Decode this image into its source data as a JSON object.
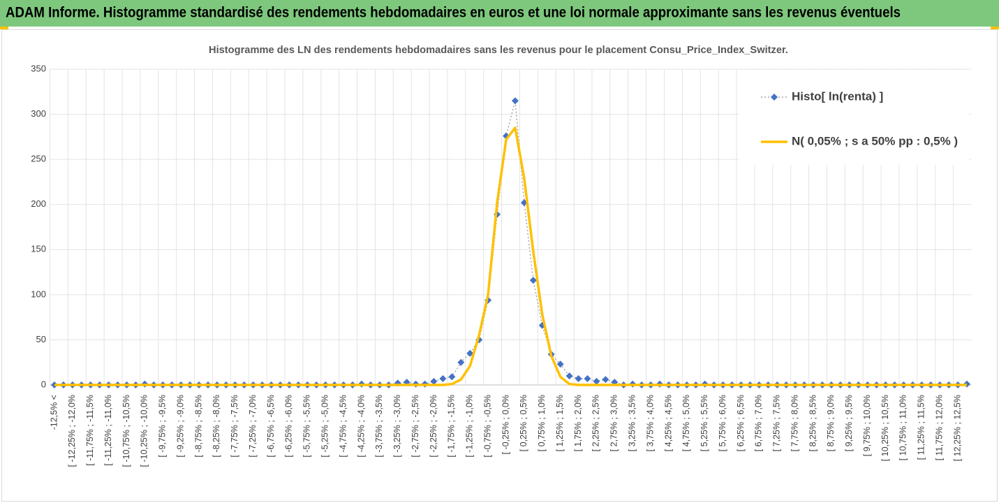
{
  "chart_data": {
    "type": "line",
    "header": "ADAM Informe. Histogramme standardisé des rendements hebdomadaires en euros et une loi normale approximante sans les revenus éventuels",
    "title": "Histogramme des LN des rendements hebdomadaires sans les revenus pour le placement Consu_Price_Index_Switzer.",
    "categories": [
      "-12,5% <",
      null,
      "[ -12,25% ; -12,0%",
      null,
      "[ -11,75% ; -11,5%",
      null,
      "[ -11,25% ; -11,0%",
      null,
      "[ -10,75% ; -10,5%",
      null,
      "[ -10,25% ; -10,0%",
      null,
      "[ -9,75% ; -9,5%",
      null,
      "[ -9,25% ; -9,0%",
      null,
      "[ -8,75% ; -8,5%",
      null,
      "[ -8,25% ; -8,0%",
      null,
      "[ -7,75% ; -7,5%",
      null,
      "[ -7,25% ; -7,0%",
      null,
      "[ -6,75% ; -6,5%",
      null,
      "[ -6,25% ; -6,0%",
      null,
      "[ -5,75% ; -5,5%",
      null,
      "[ -5,25% ; -5,0%",
      null,
      "[ -4,75% ; -4,5%",
      null,
      "[ -4,25% ; -4,0%",
      null,
      "[ -3,75% ; -3,5%",
      null,
      "[ -3,25% ; -3,0%",
      null,
      "[ -2,75% ; -2,5%",
      null,
      "[ -2,25% ; -2,0%",
      null,
      "[ -1,75% ; -1,5%",
      null,
      "[ -1,25% ; -1,0%",
      null,
      "[ -0,75% ; -0,5%",
      null,
      "[ -0,25% ; 0,0%",
      null,
      "[ 0,25% ; 0,5%",
      null,
      "[ 0,75% ; 1,0%",
      null,
      "[ 1,25% ; 1,5%",
      null,
      "[ 1,75% ; 2,0%",
      null,
      "[ 2,25% ; 2,5%",
      null,
      "[ 2,75% ; 3,0%",
      null,
      "[ 3,25% ; 3,5%",
      null,
      "[ 3,75% ; 4,0%",
      null,
      "[ 4,25% ; 4,5%",
      null,
      "[ 4,75% ; 5,0%",
      null,
      "[ 5,25% ; 5,5%",
      null,
      "[ 5,75% ; 6,0%",
      null,
      "[ 6,25% ; 6,5%",
      null,
      "[ 6,75% ; 7,0%",
      null,
      "[ 7,25% ; 7,5%",
      null,
      "[ 7,75% ; 8,0%",
      null,
      "[ 8,25% ; 8,5%",
      null,
      "[ 8,75% ; 9,0%",
      null,
      "[ 9,25% ; 9,5%",
      null,
      "[ 9,75% ; 10,0%",
      null,
      "[ 10,25% ; 10,5%",
      null,
      "[ 10,75% ; 11,0%",
      null,
      "[ 11,25% ; 11,5%",
      null,
      "[ 11,75% ; 12,0%",
      null,
      "[ 12,25% ; 12,5%",
      null
    ],
    "series": [
      {
        "name": "Histo[ ln(renta) ]",
        "color": "#4472c4",
        "line_color": "#a5a5a5",
        "line_style": "dotted",
        "marker": "diamond",
        "values": [
          0,
          0,
          0,
          0,
          0,
          0,
          0,
          0,
          0,
          0,
          1,
          0,
          0,
          0,
          0,
          0,
          0,
          0,
          0,
          0,
          0,
          0,
          0,
          0,
          0,
          0,
          0,
          0,
          0,
          0,
          0,
          0,
          0,
          0,
          1,
          0,
          0,
          0,
          2,
          3,
          1,
          1,
          4,
          7,
          9,
          25,
          35,
          50,
          94,
          189,
          276,
          315,
          202,
          116,
          66,
          34,
          23,
          10,
          7,
          7,
          4,
          6,
          3,
          0,
          1,
          0,
          0,
          1,
          0,
          0,
          0,
          0,
          1,
          0,
          0,
          0,
          0,
          0,
          0,
          0,
          0,
          0,
          0,
          0,
          0,
          0,
          0,
          0,
          0,
          0,
          0,
          0,
          0,
          0,
          0,
          0,
          0,
          0,
          0,
          0,
          0,
          1
        ]
      },
      {
        "name": "N( 0,05% ; s a 50% pp : 0,5% )",
        "color": "#ffc000",
        "line_style": "solid",
        "marker": "none",
        "values": [
          0,
          0,
          0,
          0,
          0,
          0,
          0,
          0,
          0,
          0,
          0,
          0,
          0,
          0,
          0,
          0,
          0,
          0,
          0,
          0,
          0,
          0,
          0,
          0,
          0,
          0,
          0,
          0,
          0,
          0,
          0,
          0,
          0,
          0,
          0,
          0,
          0,
          0,
          0,
          0,
          0,
          0,
          0,
          0,
          1,
          6,
          21,
          55,
          100,
          202,
          272,
          285,
          229,
          148,
          78,
          32,
          9,
          1,
          0,
          0,
          0,
          0,
          0,
          0,
          0,
          0,
          0,
          0,
          0,
          0,
          0,
          0,
          0,
          0,
          0,
          0,
          0,
          0,
          0,
          0,
          0,
          0,
          0,
          0,
          0,
          0,
          0,
          0,
          0,
          0,
          0,
          0,
          0,
          0,
          0,
          0,
          0,
          0,
          0,
          0,
          0,
          0
        ]
      }
    ],
    "ylim": [
      0,
      350
    ],
    "yticks": [
      0,
      50,
      100,
      150,
      200,
      250,
      300,
      350
    ],
    "grid": true,
    "legend": "top-right"
  }
}
